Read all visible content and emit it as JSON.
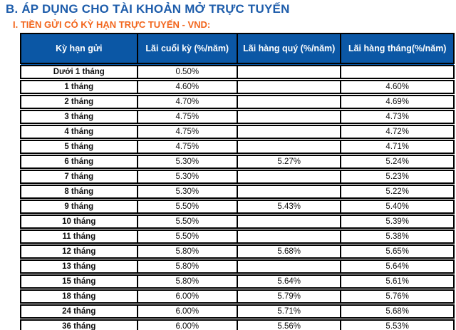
{
  "header": {
    "title": "B. ÁP DỤNG CHO TÀI KHOẢN MỞ TRỰC TUYẾN",
    "subtitle": "I. TIỀN GỬI CÓ KỲ HẠN TRỰC TUYẾN - VND:"
  },
  "colors": {
    "title_blue": "#1e5dab",
    "subtitle_orange": "#f2661d",
    "table_header_bg": "#0b57a5",
    "table_header_text": "#ffffff",
    "table_border": "#000000"
  },
  "rate_table": {
    "columns": [
      "Kỳ hạn gửi",
      "Lãi cuối kỳ (%/năm)",
      "Lãi hàng quý (%/năm)",
      "Lãi hàng tháng(%/năm)"
    ],
    "rows": [
      [
        "Dưới 1 tháng",
        "0.50%",
        "",
        ""
      ],
      [
        "1 tháng",
        "4.60%",
        "",
        "4.60%"
      ],
      [
        "2 tháng",
        "4.70%",
        "",
        "4.69%"
      ],
      [
        "3 tháng",
        "4.75%",
        "",
        "4.73%"
      ],
      [
        "4 tháng",
        "4.75%",
        "",
        "4.72%"
      ],
      [
        "5 tháng",
        "4.75%",
        "",
        "4.71%"
      ],
      [
        "6 tháng",
        "5.30%",
        "5.27%",
        "5.24%"
      ],
      [
        "7 tháng",
        "5.30%",
        "",
        "5.23%"
      ],
      [
        "8 tháng",
        "5.30%",
        "",
        "5.22%"
      ],
      [
        "9 tháng",
        "5.50%",
        "5.43%",
        "5.40%"
      ],
      [
        "10 tháng",
        "5.50%",
        "",
        "5.39%"
      ],
      [
        "11 tháng",
        "5.50%",
        "",
        "5.38%"
      ],
      [
        "12 tháng",
        "5.80%",
        "5.68%",
        "5.65%"
      ],
      [
        "13 tháng",
        "5.80%",
        "",
        "5.64%"
      ],
      [
        "15 tháng",
        "5.80%",
        "5.64%",
        "5.61%"
      ],
      [
        "18 tháng",
        "6.00%",
        "5.79%",
        "5.76%"
      ],
      [
        "24 tháng",
        "6.00%",
        "5.71%",
        "5.68%"
      ],
      [
        "36 tháng",
        "6.00%",
        "5.56%",
        "5.53%"
      ]
    ]
  }
}
